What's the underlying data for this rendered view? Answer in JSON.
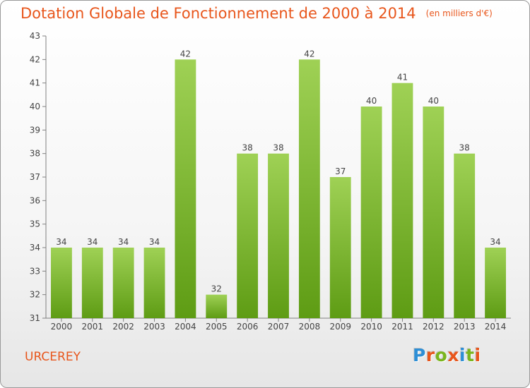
{
  "title": "Dotation Globale de Fonctionnement de 2000 à 2014",
  "unit": "(en milliers d'€)",
  "commune": "URCEREY",
  "brand": "Proxiti",
  "colors": {
    "title": "#e8561c",
    "bar_top": "#9fd155",
    "bar_bottom": "#5e9c14"
  },
  "chart_data": {
    "type": "bar",
    "title": "Dotation Globale de Fonctionnement de 2000 à 2014",
    "categories": [
      "2000",
      "2001",
      "2002",
      "2003",
      "2004",
      "2005",
      "2006",
      "2007",
      "2008",
      "2009",
      "2010",
      "2011",
      "2012",
      "2013",
      "2014"
    ],
    "values": [
      34,
      34,
      34,
      34,
      42,
      32,
      38,
      38,
      42,
      37,
      40,
      41,
      40,
      38,
      34
    ],
    "ylim": [
      31,
      43
    ],
    "yticks": [
      31,
      32,
      33,
      34,
      35,
      36,
      37,
      38,
      39,
      40,
      41,
      42,
      43
    ],
    "grid": false,
    "xlabel": "",
    "ylabel": ""
  }
}
